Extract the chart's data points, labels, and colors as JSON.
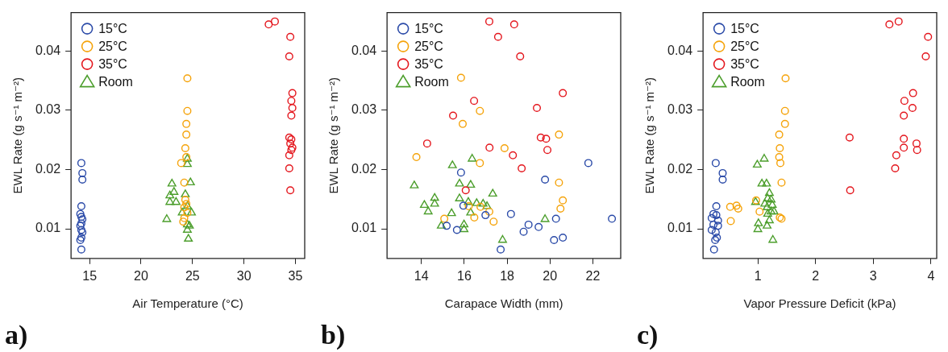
{
  "chart_data": [
    {
      "type": "scatter",
      "xlabel": "Air Temperature (°C)",
      "ylabel": "EWL Rate (g s⁻¹ m⁻²)",
      "xlim": [
        13.2,
        35.9
      ],
      "ylim": [
        0.005,
        0.0465
      ],
      "xticks": [
        15,
        20,
        25,
        30,
        35
      ],
      "yticks": [
        0.01,
        0.02,
        0.03,
        0.04
      ],
      "grid": false,
      "legend": "top left",
      "annotations": [
        "a)"
      ],
      "series": [
        {
          "name": "15°C",
          "color": "#2a4aa8",
          "marker": "circle",
          "x": [
            14.2,
            14.3,
            14.3,
            14.2,
            14.1,
            14.2,
            14.3,
            14.2,
            14.1,
            14.2,
            14.3,
            14.2,
            14.1,
            14.2
          ],
          "values": [
            0.0211,
            0.0194,
            0.0183,
            0.0138,
            0.0125,
            0.012,
            0.0116,
            0.0109,
            0.0105,
            0.0098,
            0.0094,
            0.0085,
            0.0081,
            0.0065
          ]
        },
        {
          "name": "25°C",
          "color": "#f5a30a",
          "marker": "circle",
          "x": [
            24.5,
            24.5,
            24.4,
            24.4,
            24.3,
            24.4,
            23.9,
            24.2,
            24.3,
            24.4,
            24.2,
            24.5,
            24.2,
            24.1
          ],
          "values": [
            0.0354,
            0.0299,
            0.0277,
            0.0259,
            0.0236,
            0.0221,
            0.0211,
            0.0178,
            0.0149,
            0.0142,
            0.0136,
            0.0127,
            0.0118,
            0.0112
          ]
        },
        {
          "name": "35°C",
          "color": "#e4151c",
          "marker": "circle",
          "x": [
            32.4,
            33.0,
            34.5,
            34.4,
            34.7,
            34.6,
            34.7,
            34.6,
            34.4,
            34.6,
            34.5,
            34.7,
            34.6,
            34.4,
            34.4,
            34.5
          ],
          "values": [
            0.0445,
            0.045,
            0.0424,
            0.0391,
            0.0329,
            0.0316,
            0.0304,
            0.0291,
            0.0254,
            0.0251,
            0.0244,
            0.0237,
            0.0233,
            0.0224,
            0.0202,
            0.0165
          ]
        },
        {
          "name": "Room",
          "color": "#4c9e2c",
          "marker": "triangle",
          "x": [
            24.5,
            24.5,
            23.0,
            24.8,
            23.2,
            22.8,
            24.3,
            23.4,
            22.8,
            24.5,
            24.9,
            24.0,
            22.5,
            24.5,
            24.7,
            24.5,
            24.6
          ],
          "values": [
            0.0218,
            0.0209,
            0.0176,
            0.0178,
            0.0162,
            0.0156,
            0.0158,
            0.0145,
            0.0145,
            0.0138,
            0.0127,
            0.0127,
            0.0116,
            0.0107,
            0.0105,
            0.0098,
            0.0083
          ]
        }
      ]
    },
    {
      "type": "scatter",
      "xlabel": "Carapace Width (mm)",
      "ylabel": "EWL Rate (g s⁻¹ m⁻²)",
      "xlim": [
        12.4,
        23.3
      ],
      "ylim": [
        0.005,
        0.0465
      ],
      "xticks": [
        14,
        16,
        18,
        20,
        22
      ],
      "yticks": [
        0.01,
        0.02,
        0.03,
        0.04
      ],
      "grid": false,
      "legend": "top left",
      "annotations": [
        "b)"
      ],
      "series": [
        {
          "name": "15°C",
          "color": "#2a4aa8",
          "marker": "circle",
          "x": [
            15.85,
            15.18,
            15.66,
            15.96,
            16.99,
            18.18,
            17.7,
            18.77,
            19.0,
            19.47,
            19.77,
            20.28,
            20.19,
            20.6,
            21.79,
            22.89
          ],
          "values": [
            0.0195,
            0.0105,
            0.0098,
            0.0139,
            0.0123,
            0.0125,
            0.0065,
            0.0095,
            0.0107,
            0.0103,
            0.0183,
            0.0117,
            0.0081,
            0.0085,
            0.0211,
            0.0117
          ]
        },
        {
          "name": "25°C",
          "color": "#f5a30a",
          "marker": "circle",
          "x": [
            13.77,
            15.85,
            15.93,
            16.73,
            16.73,
            17.88,
            15.07,
            16.21,
            16.47,
            16.76,
            17.17,
            17.37,
            20.42,
            20.42,
            20.6,
            20.49
          ],
          "values": [
            0.0221,
            0.0355,
            0.0277,
            0.0299,
            0.0211,
            0.0236,
            0.0117,
            0.0138,
            0.0119,
            0.0137,
            0.0129,
            0.0112,
            0.0259,
            0.0178,
            0.0148,
            0.0134
          ]
        },
        {
          "name": "35°C",
          "color": "#e4151c",
          "marker": "circle",
          "x": [
            17.17,
            18.33,
            17.58,
            18.61,
            20.6,
            19.39,
            16.46,
            15.48,
            14.27,
            17.18,
            19.57,
            19.82,
            19.88,
            18.27,
            18.68,
            16.07
          ],
          "values": [
            0.045,
            0.0445,
            0.0424,
            0.0391,
            0.0329,
            0.0304,
            0.0316,
            0.0291,
            0.0244,
            0.0237,
            0.0254,
            0.0252,
            0.0233,
            0.0224,
            0.0202,
            0.0165
          ]
        },
        {
          "name": "Room",
          "color": "#4c9e2c",
          "marker": "triangle",
          "x": [
            13.67,
            15.45,
            16.37,
            15.78,
            16.3,
            17.33,
            14.62,
            15.78,
            14.14,
            14.62,
            14.32,
            16.19,
            16.58,
            16.88,
            17.06,
            15.41,
            16.3,
            14.93,
            15.99,
            15.99,
            17.79,
            19.77
          ],
          "values": [
            0.0173,
            0.0207,
            0.0218,
            0.0176,
            0.0174,
            0.0159,
            0.0152,
            0.0151,
            0.014,
            0.0142,
            0.0129,
            0.0145,
            0.0143,
            0.0142,
            0.0138,
            0.0126,
            0.0127,
            0.0105,
            0.0107,
            0.0099,
            0.0081,
            0.0116
          ]
        }
      ]
    },
    {
      "type": "scatter",
      "xlabel": "Vapor Pressure Deficit (kPa)",
      "ylabel": "EWL Rate (g s⁻¹ m⁻²)",
      "xlim": [
        0.05,
        4.1
      ],
      "ylim": [
        0.005,
        0.0465
      ],
      "xticks": [
        1,
        2,
        3,
        4
      ],
      "yticks": [
        0.01,
        0.02,
        0.03,
        0.04
      ],
      "grid": false,
      "legend": "top left",
      "annotations": [
        "c)"
      ],
      "series": [
        {
          "name": "15°C",
          "color": "#2a4aa8",
          "marker": "circle",
          "x": [
            0.27,
            0.39,
            0.39,
            0.28,
            0.23,
            0.28,
            0.2,
            0.31,
            0.23,
            0.31,
            0.2,
            0.27,
            0.29,
            0.26,
            0.24
          ],
          "values": [
            0.0211,
            0.0194,
            0.0183,
            0.0138,
            0.0125,
            0.0123,
            0.0118,
            0.0114,
            0.0107,
            0.0105,
            0.0098,
            0.0094,
            0.0085,
            0.0081,
            0.0065
          ]
        },
        {
          "name": "25°C",
          "color": "#f5a30a",
          "marker": "circle",
          "x": [
            1.48,
            1.47,
            1.47,
            1.37,
            1.38,
            1.37,
            1.39,
            1.41,
            0.97,
            0.52,
            0.63,
            0.66,
            0.53,
            1.03,
            1.38,
            1.41
          ],
          "values": [
            0.0354,
            0.0299,
            0.0277,
            0.0259,
            0.0236,
            0.0221,
            0.0211,
            0.0178,
            0.0148,
            0.0137,
            0.0139,
            0.0134,
            0.0113,
            0.0129,
            0.0119,
            0.0117
          ]
        },
        {
          "name": "35°C",
          "color": "#e4151c",
          "marker": "circle",
          "x": [
            3.28,
            3.44,
            3.95,
            3.91,
            3.69,
            3.54,
            3.68,
            3.53,
            2.59,
            3.53,
            3.53,
            3.75,
            3.76,
            3.4,
            3.38,
            2.6
          ],
          "values": [
            0.0445,
            0.045,
            0.0424,
            0.0391,
            0.0329,
            0.0316,
            0.0304,
            0.0291,
            0.0254,
            0.0252,
            0.0237,
            0.0244,
            0.0233,
            0.0224,
            0.0202,
            0.0165
          ]
        },
        {
          "name": "Room",
          "color": "#4c9e2c",
          "marker": "triangle",
          "x": [
            1.11,
            0.99,
            1.07,
            1.15,
            1.2,
            1.17,
            1.23,
            0.96,
            1.12,
            1.25,
            1.16,
            1.23,
            1.28,
            1.17,
            1.2,
            1.01,
            1.16,
            1.0,
            1.26
          ],
          "values": [
            0.0218,
            0.0208,
            0.0176,
            0.0176,
            0.016,
            0.0151,
            0.0149,
            0.0145,
            0.0142,
            0.014,
            0.0136,
            0.0129,
            0.0129,
            0.0125,
            0.0114,
            0.0109,
            0.0105,
            0.0099,
            0.0081
          ]
        }
      ]
    }
  ]
}
